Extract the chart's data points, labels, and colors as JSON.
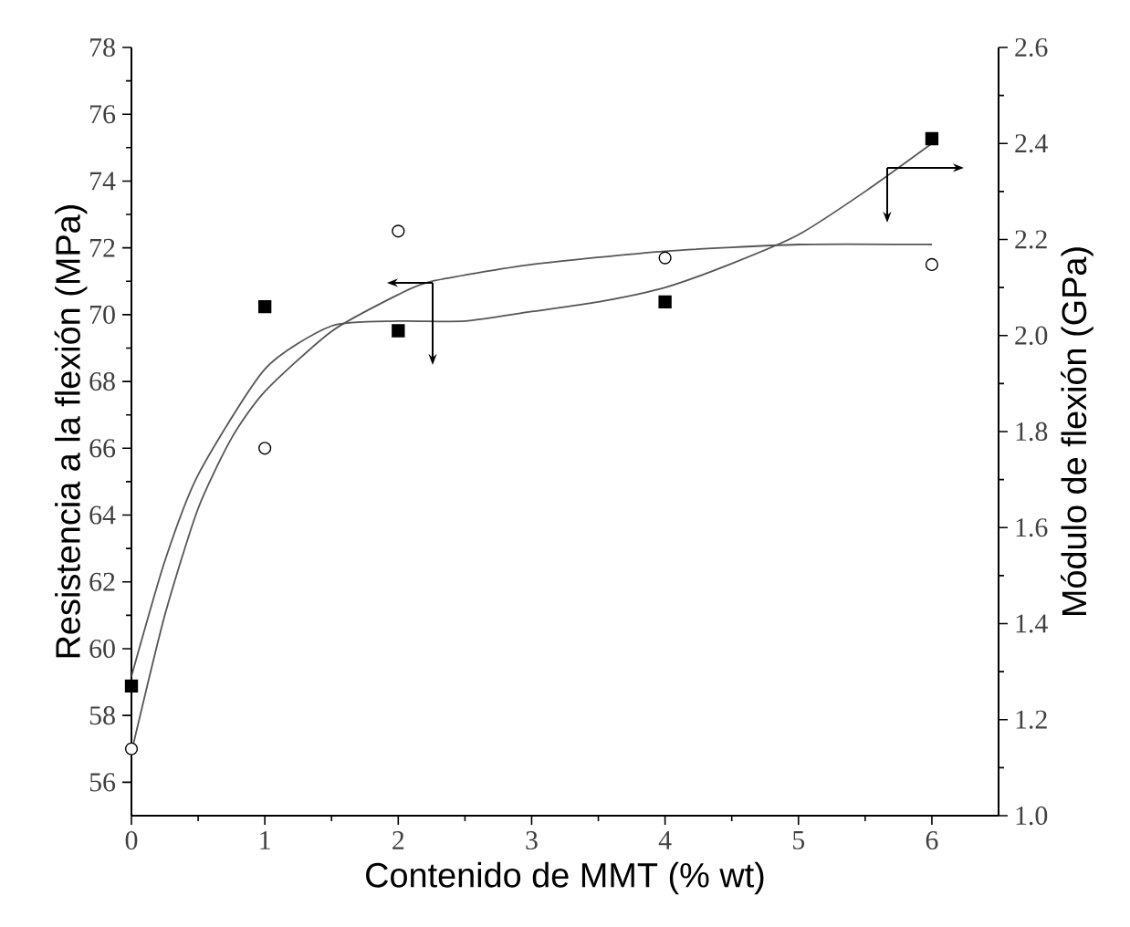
{
  "chart_data": {
    "type": "scatter",
    "xlabel": "Contenido de MMT (% wt)",
    "ylabel": "Resistencia a la flexión (MPa)",
    "y2label": "Módulo de flexión (GPa)",
    "xlim": [
      0,
      6.5
    ],
    "xticks": [
      0,
      1,
      2,
      3,
      4,
      5,
      6
    ],
    "ylim": [
      55,
      78
    ],
    "yticks": [
      56,
      58,
      60,
      62,
      64,
      66,
      68,
      70,
      72,
      74,
      76,
      78
    ],
    "y2lim": [
      1.0,
      2.6
    ],
    "y2ticks": [
      {
        "value": 1.0,
        "label": "1.0"
      },
      1.2,
      1.4,
      1.6,
      1.8,
      {
        "value": 2.0,
        "label": "2.0"
      },
      2.2,
      2.4,
      2.6
    ],
    "grid": false,
    "series": [
      {
        "marker": "circle",
        "color": "#000000",
        "x": [
          0,
          1,
          2,
          4,
          6
        ],
        "values": [
          57,
          66,
          72.5,
          71.7,
          71.5
        ]
      },
      {
        "marker": "square",
        "axis": "y2",
        "color": "#000000",
        "x": [
          0,
          1,
          2,
          4,
          6
        ],
        "values": [
          1.27,
          2.06,
          2.01,
          2.07,
          2.41
        ]
      },
      {
        "type": "line",
        "color": "#555555",
        "x": [
          0,
          0.25,
          0.5,
          0.75,
          1,
          1.5,
          2,
          2.25,
          3,
          4,
          5,
          6
        ],
        "values": [
          56.9,
          61,
          64.2,
          66.3,
          67.7,
          69.5,
          70.6,
          71,
          71.5,
          71.9,
          72.1,
          72.1
        ]
      },
      {
        "type": "line",
        "axis": "y2",
        "color": "#555555",
        "x": [
          0,
          0.25,
          0.5,
          1,
          1.5,
          2,
          2.5,
          3,
          3.5,
          4,
          4.5,
          5,
          5.5,
          6
        ],
        "values": [
          1.29,
          1.53,
          1.71,
          1.93,
          2.02,
          2.03,
          2.03,
          2.05,
          2.07,
          2.1,
          2.15,
          2.21,
          2.3,
          2.4
        ]
      }
    ]
  }
}
